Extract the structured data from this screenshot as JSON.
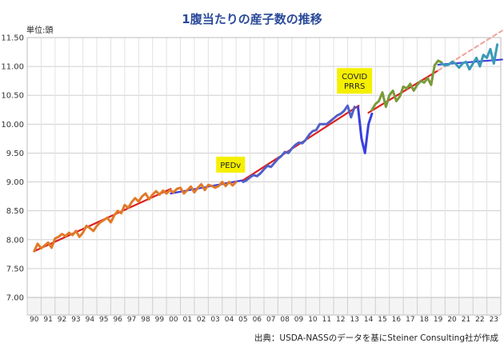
{
  "chart_data": {
    "type": "line",
    "title": "1腹当たりの産子数の推移",
    "ylabel": "単位:頭",
    "source": "出典：USDA-NASSのデータを基にSteiner Consulting社が作成",
    "ylim": [
      7.0,
      11.5
    ],
    "yticks": [
      "7.00",
      "7.50",
      "8.00",
      "8.50",
      "9.00",
      "9.50",
      "10.00",
      "10.50",
      "11.00",
      "11.50"
    ],
    "xticks": [
      "90",
      "91",
      "92",
      "93",
      "94",
      "95",
      "96",
      "97",
      "98",
      "99",
      "00",
      "01",
      "02",
      "03",
      "04",
      "05",
      "06",
      "07",
      "08",
      "09",
      "10",
      "11",
      "12",
      "13",
      "14",
      "15",
      "16",
      "17",
      "18",
      "19",
      "20",
      "21",
      "22",
      "23"
    ],
    "grid": true,
    "annotations": [
      {
        "label": "PEDv",
        "x": 14.1,
        "y": 9.3
      },
      {
        "label_lines": [
          "COVID",
          "PRRS"
        ],
        "x": 23.0,
        "y": 10.75
      }
    ],
    "series": [
      {
        "color": "#e07a2a",
        "x_start": 0.0,
        "values": [
          7.8,
          7.93,
          7.85,
          7.9,
          7.95,
          7.86,
          8.02,
          8.05,
          8.1,
          8.06,
          8.12,
          8.08,
          8.15,
          8.05,
          8.12,
          8.24,
          8.2,
          8.15,
          8.24,
          8.3,
          8.34,
          8.38,
          8.3,
          8.42,
          8.5,
          8.46,
          8.6,
          8.55,
          8.65,
          8.72,
          8.66,
          8.75,
          8.8,
          8.7,
          8.78,
          8.84,
          8.78,
          8.85,
          8.8,
          8.86,
          8.82,
          8.88,
          8.9,
          8.8,
          8.86,
          8.92,
          8.82,
          8.9,
          8.96,
          8.86,
          8.95,
          8.93,
          8.9,
          8.93,
          9.0,
          8.93,
          9.0,
          8.94,
          9.0
        ]
      },
      {
        "color": "#5060c8",
        "x_start": 15.0,
        "values": [
          9.0,
          9.03,
          9.08,
          9.12,
          9.1,
          9.15,
          9.22,
          9.28,
          9.26,
          9.33,
          9.4,
          9.45,
          9.52,
          9.5,
          9.58,
          9.64,
          9.68,
          9.67,
          9.73,
          9.82,
          9.88,
          9.9,
          10.0,
          10.0,
          10.0,
          10.05,
          10.1,
          10.15,
          10.18,
          10.23,
          10.32,
          10.12,
          10.3
        ]
      },
      {
        "color": "#3a3ee0",
        "x_start": 23.25,
        "values": [
          10.3,
          9.75,
          9.5,
          10.0,
          10.18
        ]
      },
      {
        "color": "#7a9a3a",
        "x_start": 24.25,
        "values": [
          10.25,
          10.35,
          10.4,
          10.55,
          10.3,
          10.5,
          10.58,
          10.4,
          10.48,
          10.65,
          10.62,
          10.7,
          10.58,
          10.68,
          10.75,
          10.72,
          10.8,
          10.68,
          11.02,
          11.1,
          11.07
        ]
      },
      {
        "color": "#3a9ab8",
        "x_start": 29.25,
        "values": [
          11.05,
          11.02,
          11.03,
          11.08,
          11.05,
          10.98,
          11.05,
          11.08,
          10.95,
          11.05,
          11.15,
          11.0,
          11.2,
          11.15,
          11.3,
          11.05,
          11.38
        ]
      }
    ],
    "trend_lines": [
      {
        "color": "#dd2020",
        "x": [
          0.0,
          9.8
        ],
        "y": [
          7.8,
          8.88
        ]
      },
      {
        "color": "#3a3ee0",
        "x": [
          9.8,
          15.0
        ],
        "y": [
          8.8,
          9.03
        ]
      },
      {
        "color": "#dd2020",
        "x": [
          15.0,
          23.3
        ],
        "y": [
          9.03,
          10.32
        ]
      },
      {
        "color": "#dd2020",
        "x": [
          24.0,
          29.0
        ],
        "y": [
          10.2,
          10.93
        ]
      },
      {
        "color": "#f0a8a0",
        "x": [
          29.0,
          33.6
        ],
        "y": [
          10.93,
          11.62
        ],
        "dashed": true
      },
      {
        "color": "#3a3ee0",
        "x": [
          29.0,
          33.6
        ],
        "y": [
          11.03,
          11.12
        ]
      }
    ]
  }
}
